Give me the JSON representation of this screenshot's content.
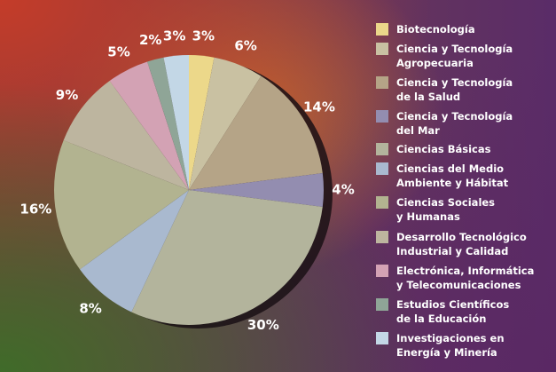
{
  "chart_data": {
    "type": "pie",
    "categories": [
      "Biotecnología",
      "Ciencia y Tecnología\nAgropecuaria",
      "Ciencia y Tecnología\nde la Salud",
      "Ciencia y Tecnología\ndel Mar",
      "Ciencias Básicas",
      "Ciencias del Medio\nAmbiente y Hábitat",
      "Ciencias Sociales\ny Humanas",
      "Desarrollo Tecnológico\nIndustrial y Calidad",
      "Electrónica, Informática\ny Telecomunicaciones",
      "Estudios Científicos\nde la Educación",
      "Investigaciones en\nEnergía y Minería"
    ],
    "values": [
      3,
      6,
      14,
      4,
      30,
      8,
      16,
      9,
      5,
      2,
      3
    ],
    "value_labels": [
      "3%",
      "6%",
      "14%",
      "4%",
      "30%",
      "8%",
      "16%",
      "9%",
      "5%",
      "2%",
      "3%"
    ],
    "colors": [
      "#ecd88a",
      "#c9c1a2",
      "#b5a487",
      "#938db0",
      "#b3b49c",
      "#a9b9cf",
      "#b2b390",
      "#bdb59f",
      "#d3a2b4",
      "#8fa597",
      "#c3d7e6"
    ],
    "legend": "right"
  }
}
